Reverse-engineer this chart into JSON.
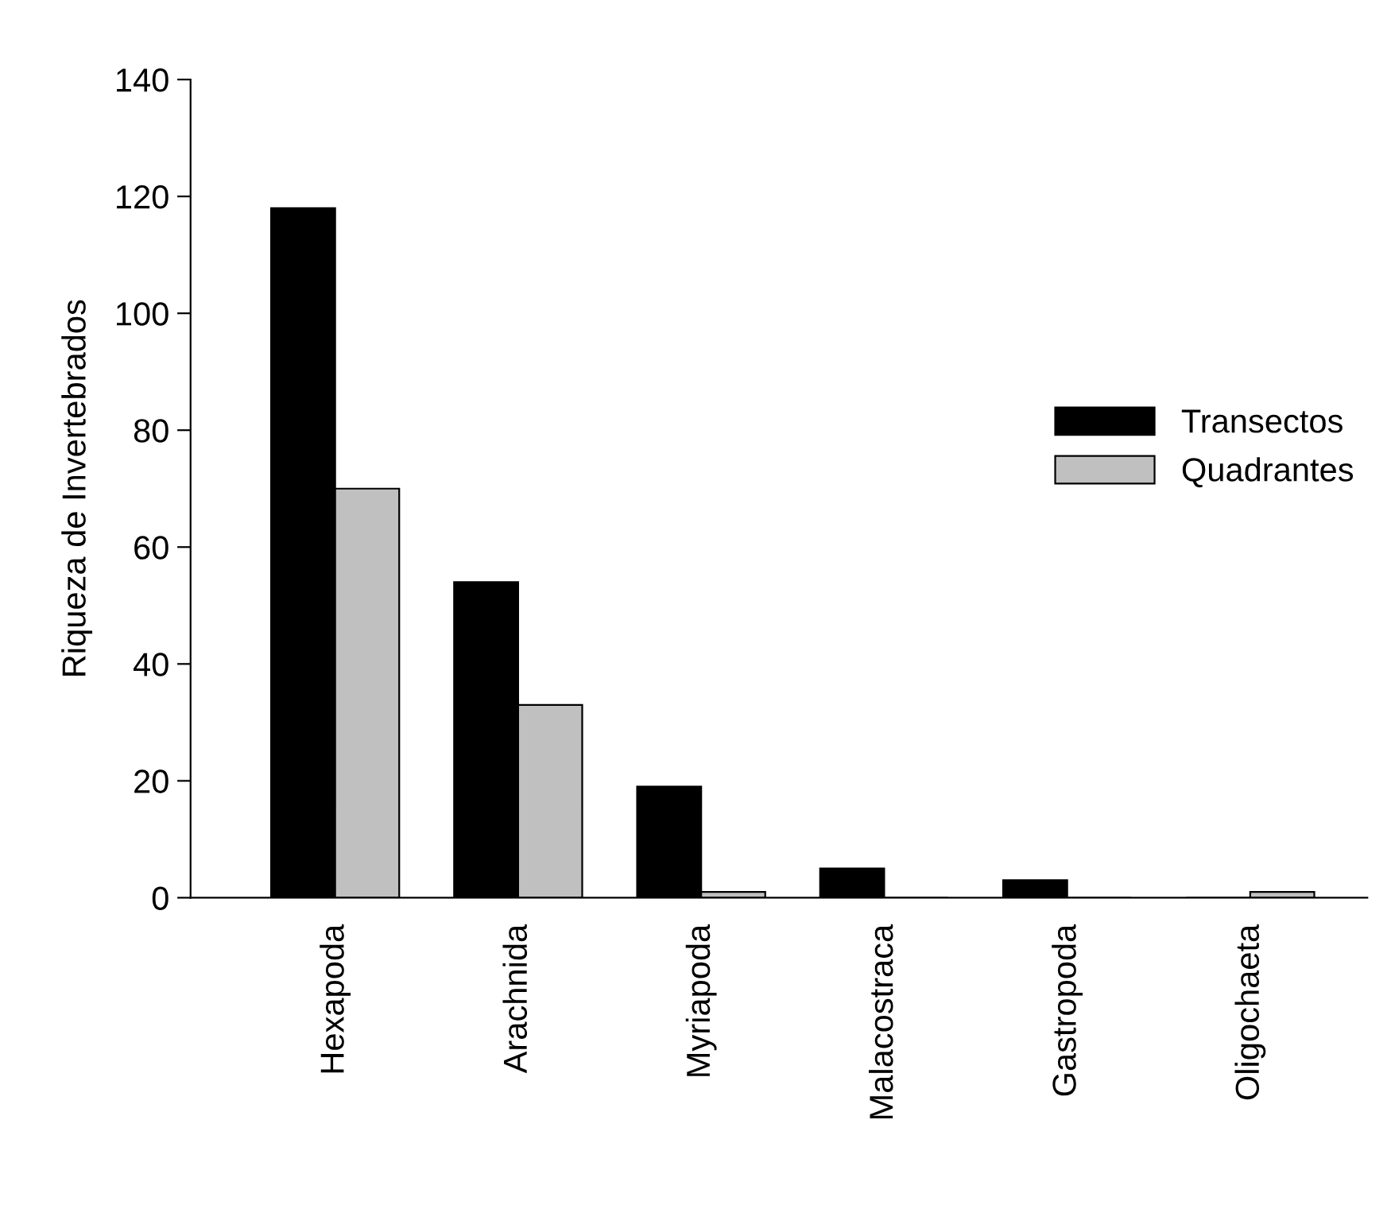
{
  "chart_data": {
    "type": "bar",
    "ylabel": "Riqueza de Invertebrados",
    "categories": [
      "Hexapoda",
      "Arachnida",
      "Myriapoda",
      "Malacostraca",
      "Gastropoda",
      "Oligochaeta"
    ],
    "series": [
      {
        "name": "Transectos",
        "color": "#000000",
        "values": [
          118,
          54,
          19,
          5,
          3,
          0
        ]
      },
      {
        "name": "Quadrantes",
        "color": "#c0c0c0",
        "values": [
          70,
          33,
          1,
          0,
          0,
          1
        ]
      }
    ],
    "ylim": [
      0,
      140
    ],
    "yticks": [
      0,
      20,
      40,
      60,
      80,
      100,
      120,
      140
    ],
    "grid": false,
    "legend": "right"
  }
}
